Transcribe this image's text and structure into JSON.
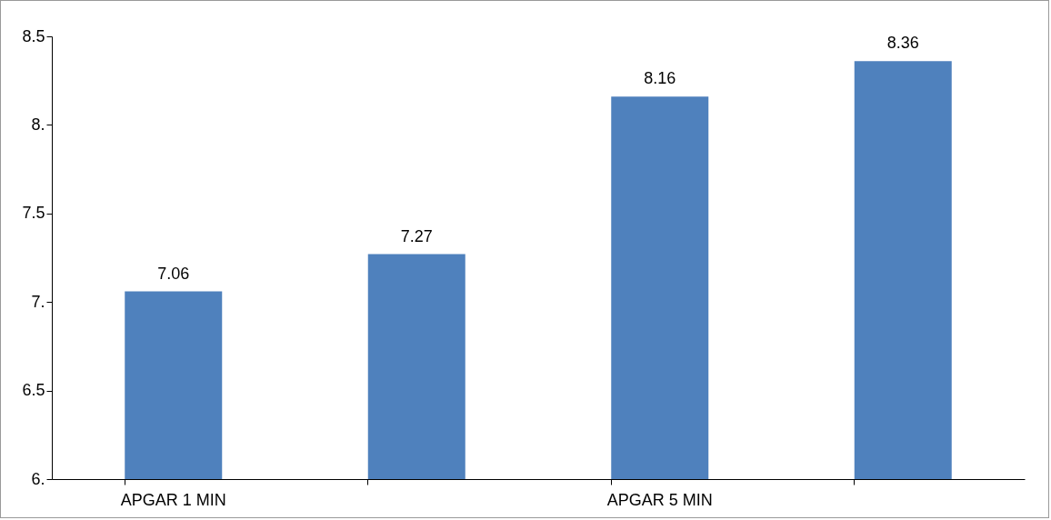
{
  "chart_data": {
    "type": "bar",
    "categories": [
      "APGAR 1 MIN",
      null,
      "APGAR 5 MIN",
      null
    ],
    "values": [
      7.06,
      7.27,
      8.16,
      8.36
    ],
    "color": "#4f81bd",
    "ylim": [
      6,
      8.5
    ],
    "yticks": [
      {
        "value": 6,
        "label": "6."
      },
      6.5,
      {
        "value": 7,
        "label": "7."
      },
      7.5,
      {
        "value": 8,
        "label": "8."
      },
      8.5
    ],
    "data_labels": true,
    "grid": false
  }
}
